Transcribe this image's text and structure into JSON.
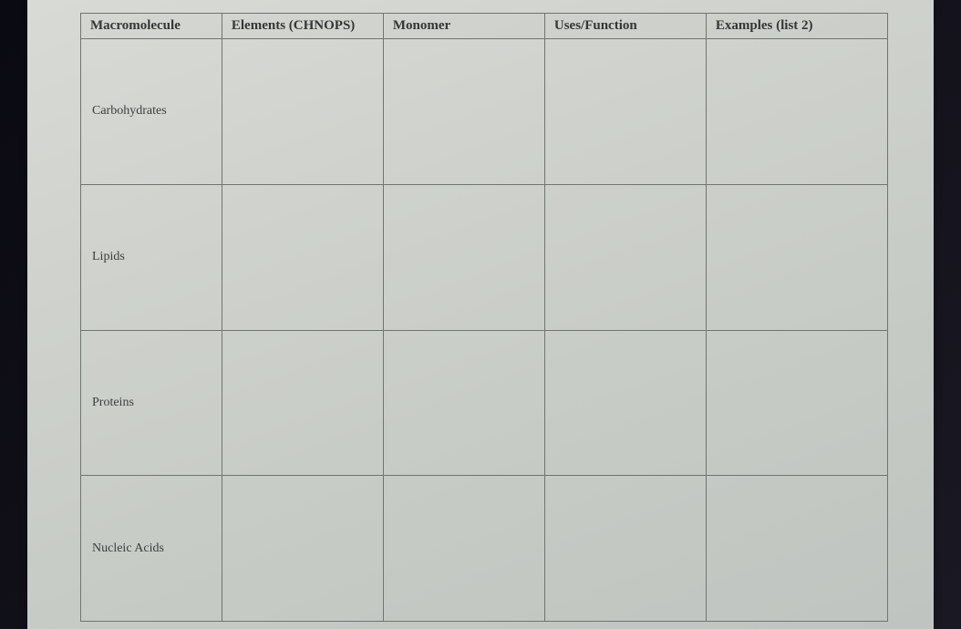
{
  "table": {
    "type": "table",
    "columns": [
      {
        "label": "Macromolecule",
        "width_pct": 17.5
      },
      {
        "label": "Elements  (CHNOPS)",
        "width_pct": 20
      },
      {
        "label": "Monomer",
        "width_pct": 20
      },
      {
        "label": "Uses/Function",
        "width_pct": 20
      },
      {
        "label": "Examples (list 2)",
        "width_pct": 22.5
      }
    ],
    "rows": [
      {
        "label": "Carbohydrates",
        "cells": [
          "",
          "",
          "",
          ""
        ]
      },
      {
        "label": "Lipids",
        "cells": [
          "",
          "",
          "",
          ""
        ]
      },
      {
        "label": "Proteins",
        "cells": [
          "",
          "",
          "",
          ""
        ]
      },
      {
        "label": "Nucleic Acids",
        "cells": [
          "",
          "",
          "",
          ""
        ]
      }
    ],
    "style": {
      "border_color": "#6f7571",
      "header_fontsize": 15,
      "row_label_fontsize": 14,
      "background_gradient": [
        "#d8dad5",
        "#d0d3cd",
        "#c8ccc6",
        "#bfc4c0"
      ],
      "text_color": "#333735",
      "font_family": "Times New Roman",
      "header_font_weight": "bold"
    }
  }
}
